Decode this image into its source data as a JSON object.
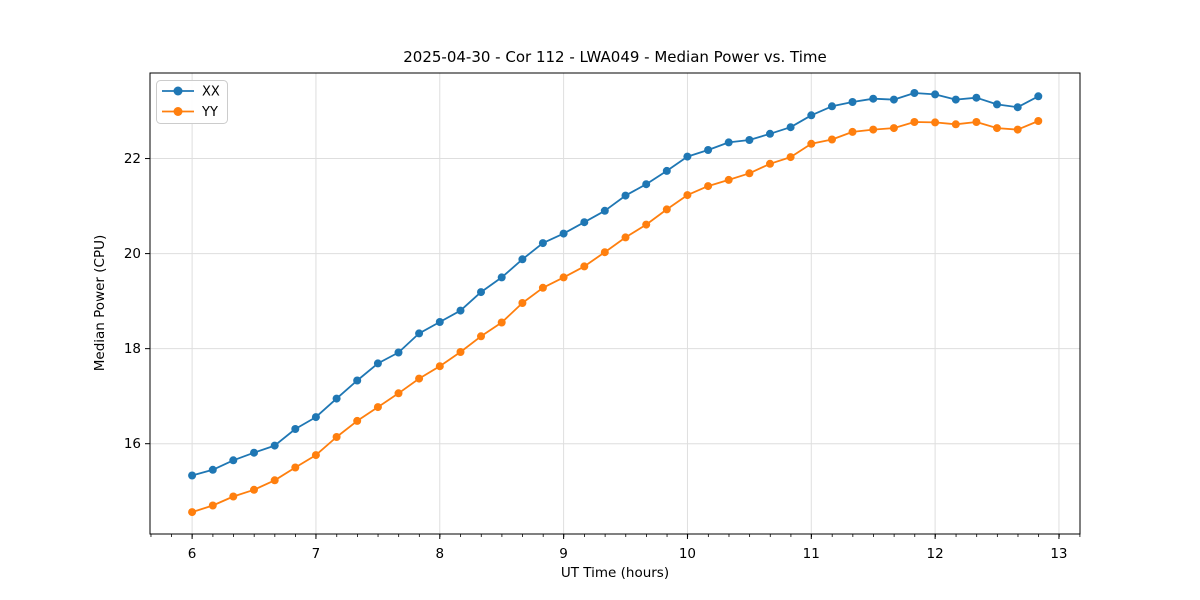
{
  "chart_data": {
    "type": "line",
    "title": "2025-04-30 - Cor 112 - LWA049 - Median Power vs. Time",
    "xlabel": "UT Time (hours)",
    "ylabel": "Median Power (CPU)",
    "xlim": [
      5.66,
      13.17
    ],
    "ylim": [
      14.1,
      23.8
    ],
    "xticks": [
      6,
      7,
      8,
      9,
      10,
      11,
      12,
      13
    ],
    "yticks": [
      16,
      18,
      20,
      22
    ],
    "minor_xtick_interval": 0.1667,
    "grid": true,
    "legend": {
      "position": "upper left",
      "entries": [
        "XX",
        "YY"
      ]
    },
    "marker": "circle",
    "x": [
      6.0,
      6.167,
      6.333,
      6.5,
      6.667,
      6.833,
      7.0,
      7.167,
      7.333,
      7.5,
      7.667,
      7.833,
      8.0,
      8.167,
      8.333,
      8.5,
      8.667,
      8.833,
      9.0,
      9.167,
      9.333,
      9.5,
      9.667,
      9.833,
      10.0,
      10.167,
      10.333,
      10.5,
      10.667,
      10.833,
      11.0,
      11.167,
      11.333,
      11.5,
      11.667,
      11.833,
      12.0,
      12.167,
      12.333,
      12.5,
      12.667,
      12.833
    ],
    "series": [
      {
        "name": "XX",
        "color": "#1f77b4",
        "values": [
          15.33,
          15.45,
          15.65,
          15.81,
          15.96,
          16.31,
          16.56,
          16.95,
          17.33,
          17.69,
          17.92,
          18.32,
          18.56,
          18.8,
          19.19,
          19.5,
          19.88,
          20.22,
          20.42,
          20.66,
          20.9,
          21.22,
          21.46,
          21.74,
          22.04,
          22.18,
          22.34,
          22.39,
          22.52,
          22.66,
          22.91,
          23.1,
          23.19,
          23.26,
          23.24,
          23.38,
          23.35,
          23.24,
          23.28,
          23.14,
          23.08,
          23.31
        ]
      },
      {
        "name": "YY",
        "color": "#ff7f0e",
        "values": [
          14.56,
          14.7,
          14.89,
          15.03,
          15.23,
          15.5,
          15.76,
          16.14,
          16.48,
          16.77,
          17.06,
          17.37,
          17.63,
          17.93,
          18.26,
          18.55,
          18.96,
          19.28,
          19.5,
          19.73,
          20.03,
          20.34,
          20.61,
          20.93,
          21.23,
          21.42,
          21.55,
          21.69,
          21.89,
          22.03,
          22.31,
          22.4,
          22.56,
          22.61,
          22.64,
          22.77,
          22.76,
          22.72,
          22.77,
          22.64,
          22.61,
          22.79
        ]
      }
    ],
    "style": {
      "background": "#ffffff",
      "grid_color": "#dedede",
      "spine_color": "#000000",
      "legend_border": "#cccccc",
      "text_color": "#000000"
    }
  }
}
